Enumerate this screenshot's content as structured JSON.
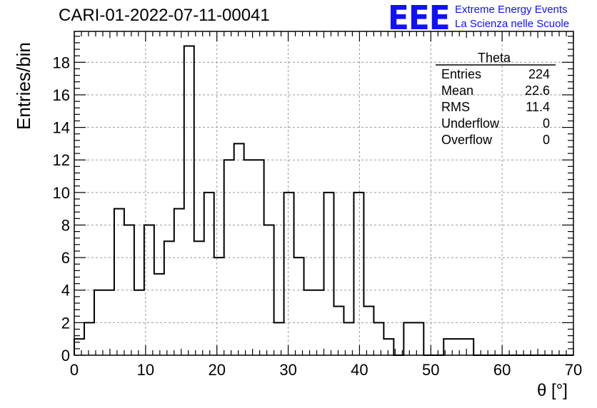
{
  "header": {
    "title": "CARI-01-2022-07-11-00041",
    "logo_text": "EEE",
    "logo_line1": "Extreme Energy Events",
    "logo_line2": "La Scienza nelle Scuole",
    "logo_color": "#1010ff"
  },
  "chart_data": {
    "type": "bar",
    "histogram": true,
    "xlabel": "θ [°]",
    "ylabel": "Entries/bin",
    "xlim": [
      0,
      70
    ],
    "ylim": [
      0,
      19.9
    ],
    "grid": true,
    "bin_width": 1.4,
    "x_ticks": [
      0,
      10,
      20,
      30,
      40,
      50,
      60,
      70
    ],
    "y_ticks": [
      0,
      2,
      4,
      6,
      8,
      10,
      12,
      14,
      16,
      18
    ],
    "bin_edges_start": 0,
    "values": [
      1,
      2,
      4,
      4,
      9,
      8,
      4,
      8,
      5,
      7,
      9,
      19,
      7,
      10,
      6,
      12,
      13,
      12,
      12,
      8,
      2,
      10,
      6,
      4,
      4,
      10,
      3,
      2,
      10,
      3,
      2,
      1,
      0,
      2,
      2,
      0,
      0,
      1,
      1,
      1,
      0,
      0,
      0,
      0,
      0,
      0,
      0,
      0,
      0,
      0
    ],
    "stats_box": {
      "title": "Theta",
      "rows": [
        {
          "label": "Entries",
          "value": "224"
        },
        {
          "label": "Mean",
          "value": "22.6"
        },
        {
          "label": "RMS",
          "value": "11.4"
        },
        {
          "label": "Underflow",
          "value": "0"
        },
        {
          "label": "Overflow",
          "value": "0"
        }
      ]
    }
  }
}
